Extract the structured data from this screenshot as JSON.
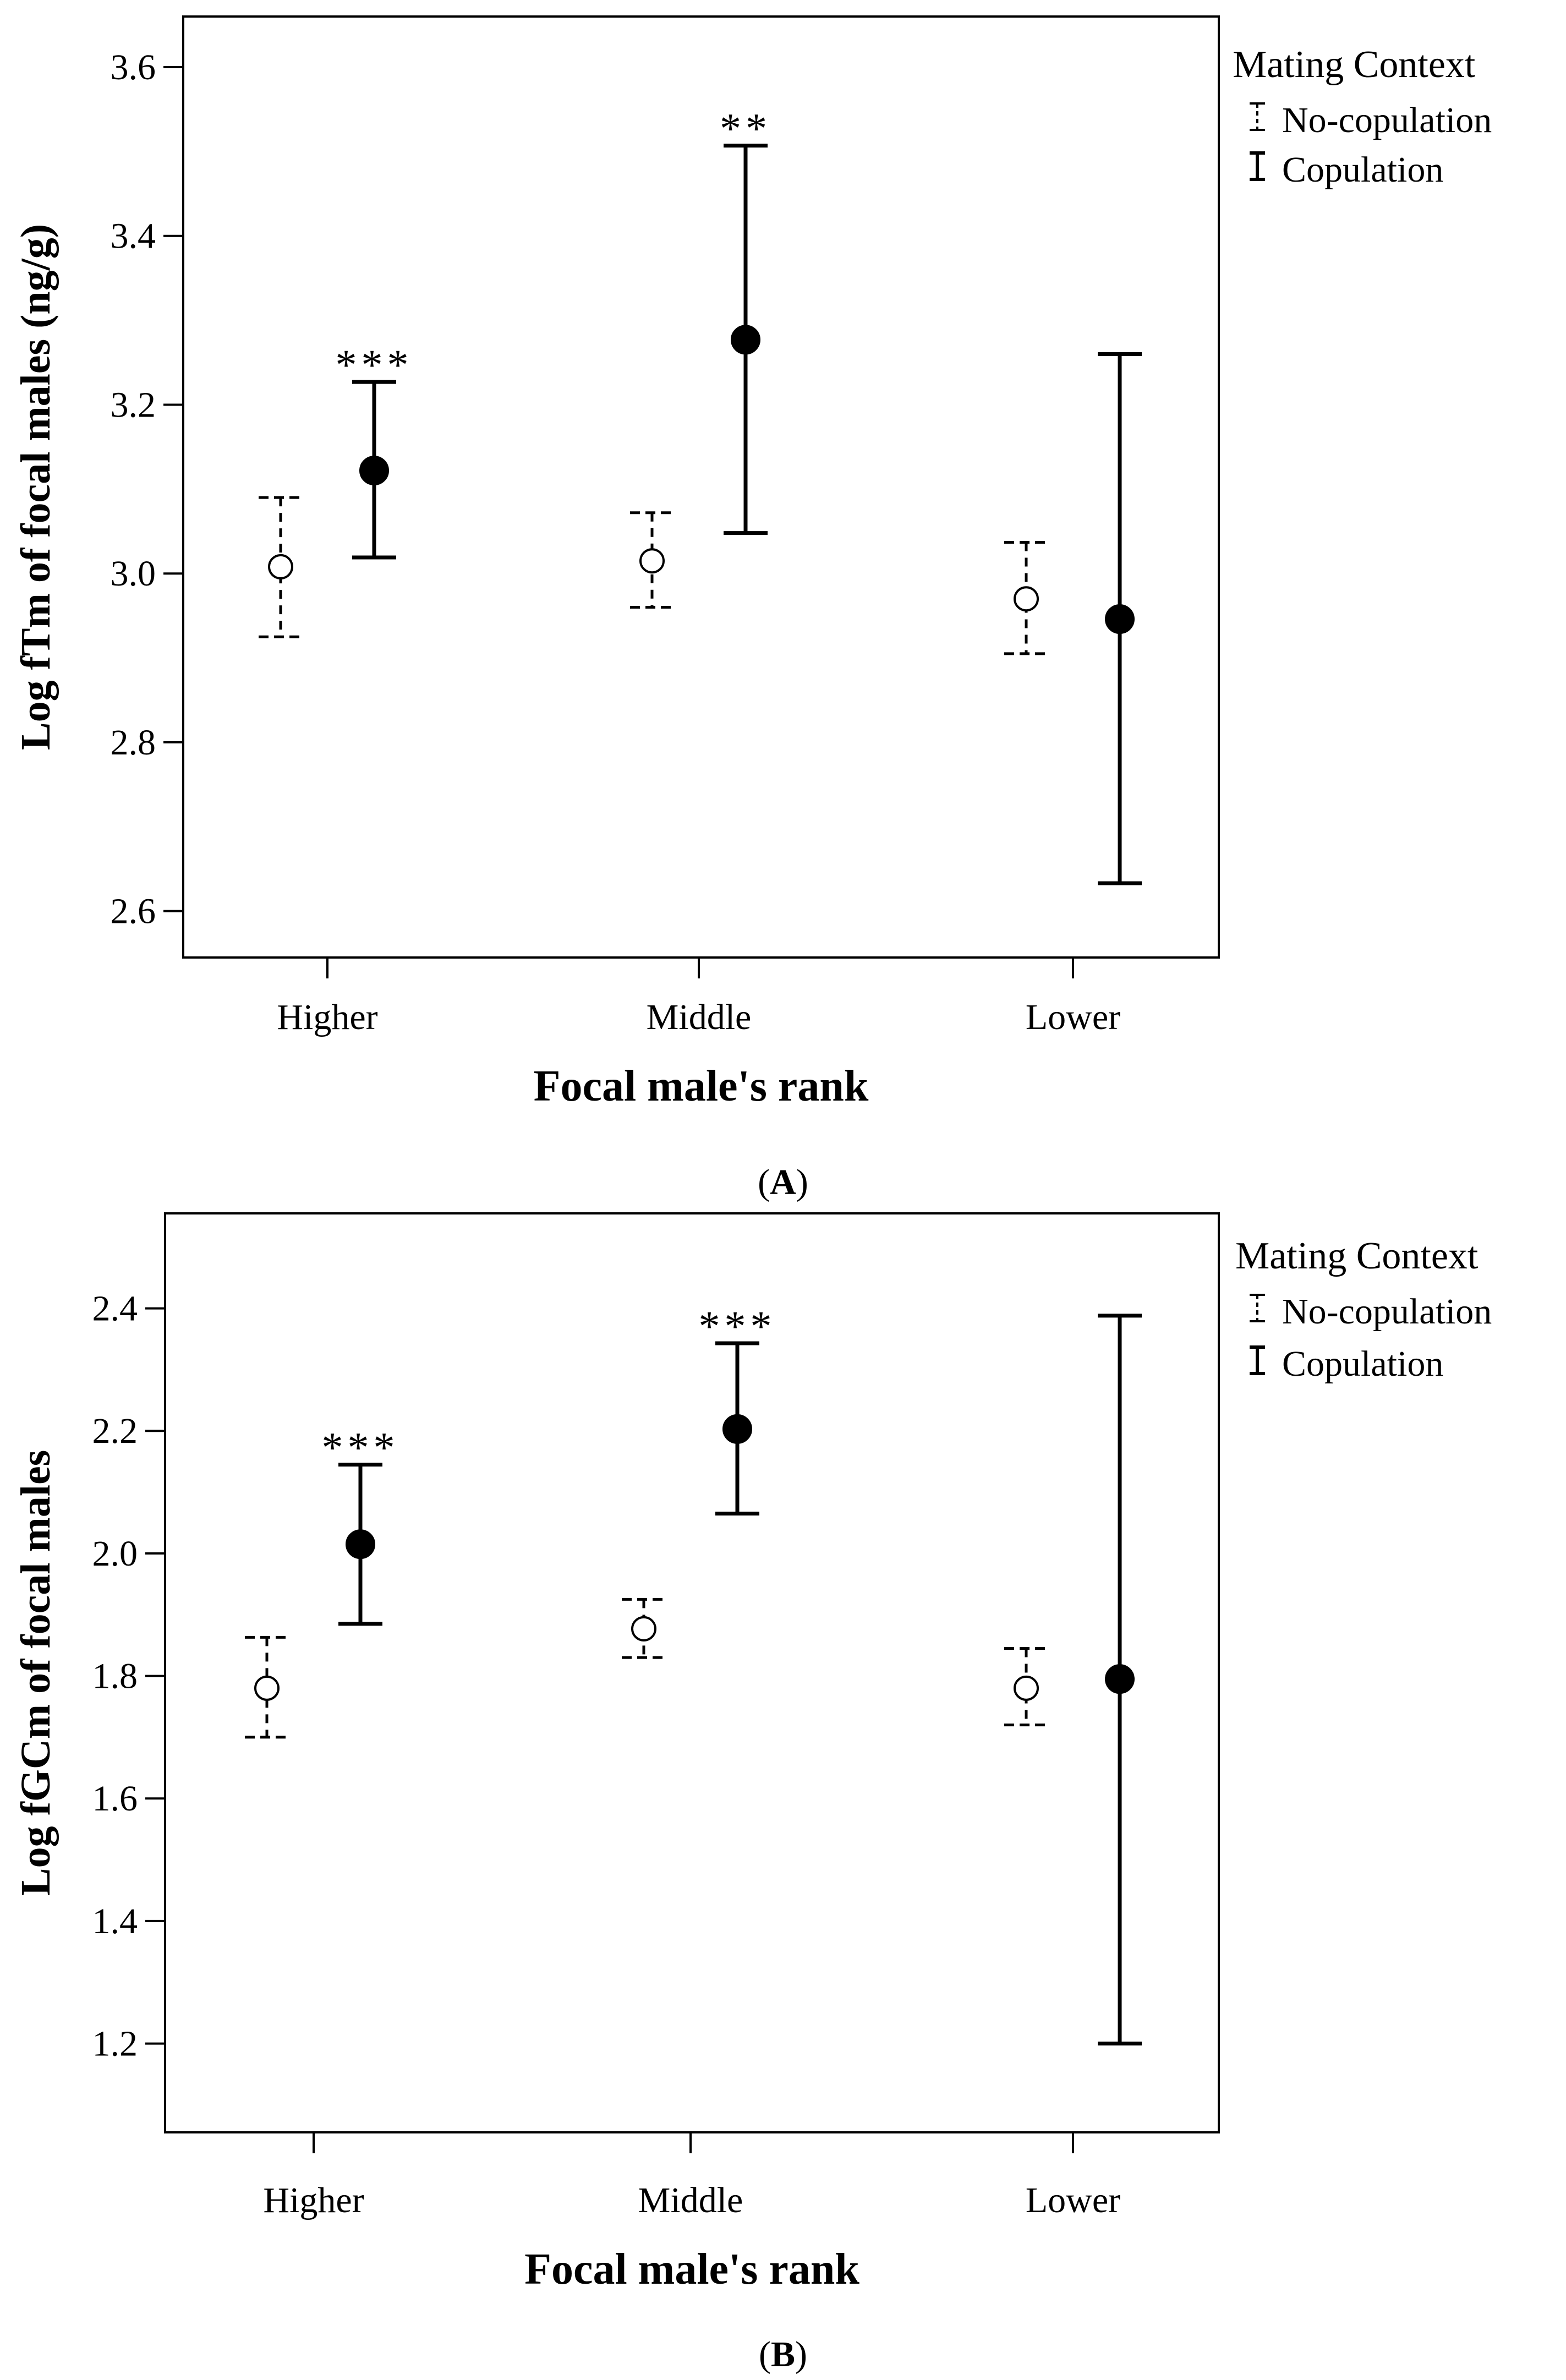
{
  "chart_data": [
    {
      "type": "errorbar",
      "panel": "A",
      "panel_label_open": "(",
      "panel_label_letter": "A",
      "panel_label_close": ")",
      "title": "",
      "xlabel": "Focal male's rank",
      "ylabel": "Log fTm of focal males (ng/g)",
      "ylim": [
        2.545,
        3.66
      ],
      "yticks": [
        2.6,
        2.8,
        3.0,
        3.2,
        3.4,
        3.6
      ],
      "ytick_labels": [
        "2.6",
        "2.8",
        "3.0",
        "3.2",
        "3.4",
        "3.6"
      ],
      "categories": [
        "Higher",
        "Middle",
        "Lower"
      ],
      "legend": {
        "title": "Mating Context",
        "entries": [
          "No-copulation",
          "Copulation"
        ]
      },
      "series": [
        {
          "name": "No-copulation",
          "style": "dashed-open",
          "mean": [
            3.008,
            3.015,
            2.97
          ],
          "lower": [
            2.925,
            2.96,
            2.905
          ],
          "upper": [
            3.09,
            3.072,
            3.037
          ]
        },
        {
          "name": "Copulation",
          "style": "solid-filled",
          "mean": [
            3.122,
            3.277,
            2.946
          ],
          "lower": [
            3.019,
            3.048,
            2.633
          ],
          "upper": [
            3.227,
            3.507,
            3.26
          ]
        }
      ],
      "significance": [
        "***",
        "**",
        ""
      ]
    },
    {
      "type": "errorbar",
      "panel": "B",
      "panel_label_open": "(",
      "panel_label_letter": "B",
      "panel_label_close": ")",
      "title": "",
      "xlabel": "Focal male's rank",
      "ylabel": "Log fGCm of focal males",
      "ylim": [
        1.055,
        2.555
      ],
      "yticks": [
        1.2,
        1.4,
        1.6,
        1.8,
        2.0,
        2.2,
        2.4
      ],
      "ytick_labels": [
        "1.2",
        "1.4",
        "1.6",
        "1.8",
        "2.0",
        "2.2",
        "2.4"
      ],
      "categories": [
        "Higher",
        "Middle",
        "Lower"
      ],
      "legend": {
        "title": "Mating Context",
        "entries": [
          "No-copulation",
          "Copulation"
        ]
      },
      "series": [
        {
          "name": "No-copulation",
          "style": "dashed-open",
          "mean": [
            1.78,
            1.877,
            1.78
          ],
          "lower": [
            1.7,
            1.83,
            1.72
          ],
          "upper": [
            1.863,
            1.925,
            1.845
          ]
        },
        {
          "name": "Copulation",
          "style": "solid-filled",
          "mean": [
            2.015,
            2.203,
            1.795
          ],
          "lower": [
            1.885,
            2.065,
            1.2
          ],
          "upper": [
            2.145,
            2.343,
            2.388
          ]
        }
      ],
      "significance": [
        "***",
        "***",
        ""
      ]
    }
  ]
}
